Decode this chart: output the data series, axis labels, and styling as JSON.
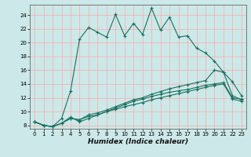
{
  "xlabel": "Humidex (Indice chaleur)",
  "background_color": "#cce8e8",
  "grid_color": "#ffaaaa",
  "line_color": "#1a7060",
  "x": [
    0,
    1,
    2,
    3,
    4,
    5,
    6,
    7,
    8,
    9,
    10,
    11,
    12,
    13,
    14,
    15,
    16,
    17,
    18,
    19,
    20,
    21,
    22,
    23
  ],
  "y_line1": [
    8.5,
    8.0,
    7.8,
    9.0,
    13.0,
    20.5,
    22.2,
    21.5,
    20.8,
    24.1,
    21.0,
    22.8,
    21.2,
    25.0,
    21.8,
    23.7,
    20.8,
    21.0,
    19.2,
    18.5,
    17.3,
    15.7,
    14.3,
    12.3
  ],
  "y_line2": [
    8.5,
    8.0,
    7.8,
    8.3,
    9.2,
    8.5,
    9.0,
    9.5,
    10.0,
    10.5,
    11.0,
    11.5,
    11.8,
    12.2,
    12.5,
    12.8,
    13.0,
    13.2,
    13.5,
    13.8,
    14.0,
    14.2,
    12.0,
    11.8
  ],
  "y_line3": [
    8.5,
    8.0,
    7.8,
    8.3,
    9.0,
    8.8,
    9.5,
    9.8,
    10.2,
    10.7,
    11.2,
    11.7,
    12.0,
    12.5,
    12.9,
    13.3,
    13.6,
    13.9,
    14.2,
    14.5,
    16.0,
    15.7,
    12.3,
    11.7
  ],
  "y_line4": [
    8.5,
    8.0,
    7.8,
    8.3,
    9.0,
    8.8,
    9.3,
    9.5,
    10.0,
    10.3,
    10.7,
    11.0,
    11.3,
    11.7,
    12.0,
    12.3,
    12.6,
    12.9,
    13.2,
    13.5,
    13.8,
    14.0,
    11.8,
    11.5
  ],
  "ylim": [
    7.5,
    25.5
  ],
  "xlim": [
    -0.5,
    23.5
  ],
  "yticks": [
    8,
    10,
    12,
    14,
    16,
    18,
    20,
    22,
    24
  ],
  "xticks": [
    0,
    1,
    2,
    3,
    4,
    5,
    6,
    7,
    8,
    9,
    10,
    11,
    12,
    13,
    14,
    15,
    16,
    17,
    18,
    19,
    20,
    21,
    22,
    23
  ],
  "tick_fontsize": 5.0,
  "xlabel_fontsize": 6.5
}
